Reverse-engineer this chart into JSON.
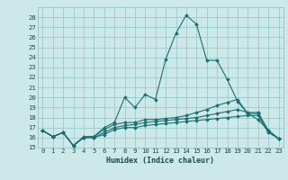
{
  "title": "",
  "xlabel": "Humidex (Indice chaleur)",
  "background_color": "#cce8e8",
  "grid_color": "#99cccc",
  "line_color": "#1a7070",
  "xlim": [
    -0.5,
    23.5
  ],
  "ylim": [
    15,
    29
  ],
  "yticks": [
    15,
    16,
    17,
    18,
    19,
    20,
    21,
    22,
    23,
    24,
    25,
    26,
    27,
    28
  ],
  "xticks": [
    0,
    1,
    2,
    3,
    4,
    5,
    6,
    7,
    8,
    9,
    10,
    11,
    12,
    13,
    14,
    15,
    16,
    17,
    18,
    19,
    20,
    21,
    22,
    23
  ],
  "series": [
    [
      16.7,
      16.1,
      16.5,
      15.2,
      16.0,
      16.1,
      17.0,
      17.5,
      20.0,
      19.0,
      20.3,
      19.8,
      23.8,
      26.4,
      28.2,
      27.3,
      23.7,
      23.7,
      21.8,
      19.6,
      18.4,
      17.8,
      16.7,
      15.9
    ],
    [
      16.7,
      16.1,
      16.5,
      15.2,
      16.1,
      16.1,
      16.8,
      17.3,
      17.5,
      17.5,
      17.8,
      17.8,
      17.9,
      18.0,
      18.2,
      18.5,
      18.8,
      19.2,
      19.5,
      19.8,
      18.4,
      18.4,
      16.7,
      15.9
    ],
    [
      16.7,
      16.1,
      16.5,
      15.2,
      16.0,
      16.0,
      16.5,
      17.0,
      17.2,
      17.3,
      17.5,
      17.6,
      17.7,
      17.8,
      17.9,
      18.0,
      18.2,
      18.4,
      18.6,
      18.8,
      18.5,
      18.5,
      16.7,
      15.9
    ],
    [
      16.7,
      16.1,
      16.5,
      15.2,
      16.0,
      16.0,
      16.3,
      16.8,
      17.0,
      17.0,
      17.2,
      17.3,
      17.4,
      17.5,
      17.6,
      17.7,
      17.8,
      17.9,
      18.0,
      18.1,
      18.2,
      18.2,
      16.5,
      15.9
    ]
  ]
}
